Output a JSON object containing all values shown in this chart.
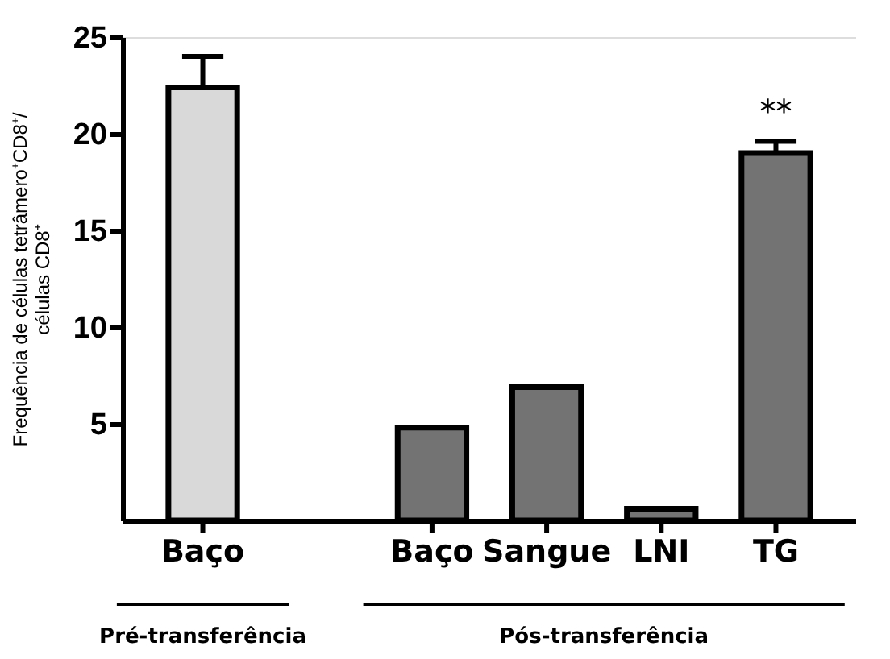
{
  "chart_data": {
    "type": "bar",
    "ylabel": [
      "Frequência de células tetrâmero⁺CD8⁺/",
      "células CD8⁺"
    ],
    "categories": [
      "Baço",
      null,
      "Baço",
      "Sangue",
      "LNI",
      "TG"
    ],
    "values": [
      22.4,
      null,
      4.8,
      6.9,
      0.6,
      19.0
    ],
    "errors": [
      1.6,
      null,
      null,
      null,
      null,
      0.6
    ],
    "colors": [
      "#d9d9d9",
      null,
      "#737373",
      "#737373",
      "#737373",
      "#737373"
    ],
    "ylim": [
      0,
      25
    ],
    "yticks": [
      5,
      10,
      15,
      20,
      25
    ],
    "grid": false,
    "annotations": [
      "**",
      "Pré-transferência",
      "Pós-transferência"
    ]
  }
}
